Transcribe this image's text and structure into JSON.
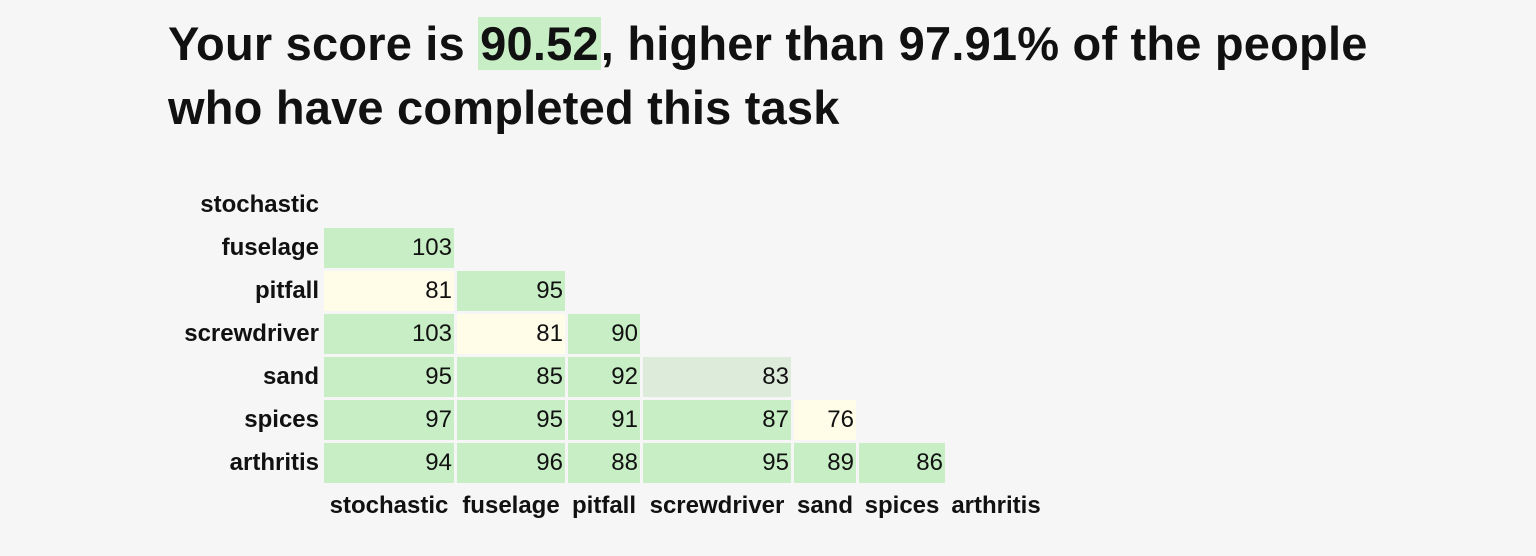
{
  "headline": {
    "prefix": "Your score is ",
    "score": "90.52",
    "suffix": ", higher than 97.91% of the people who have completed this task"
  },
  "matrix": {
    "rows": [
      "stochastic",
      "fuselage",
      "pitfall",
      "screwdriver",
      "sand",
      "spices",
      "arthritis"
    ],
    "columns": [
      "stochastic",
      "fuselage",
      "pitfall",
      "screwdriver",
      "sand",
      "spices",
      "arthritis"
    ],
    "values": [
      [],
      [
        103
      ],
      [
        81,
        95
      ],
      [
        103,
        81,
        90
      ],
      [
        95,
        85,
        92,
        83
      ],
      [
        97,
        95,
        91,
        87,
        76
      ],
      [
        94,
        96,
        88,
        95,
        89,
        86
      ]
    ],
    "colors": {
      "high": "#c8eec5",
      "mid": "#dcebda",
      "low": "#fffde8"
    },
    "cell_colors": [
      [],
      [
        "high"
      ],
      [
        "low",
        "high"
      ],
      [
        "high",
        "low",
        "high"
      ],
      [
        "high",
        "high",
        "high",
        "mid"
      ],
      [
        "high",
        "high",
        "high",
        "high",
        "low"
      ],
      [
        "high",
        "high",
        "high",
        "high",
        "high",
        "high"
      ]
    ]
  }
}
